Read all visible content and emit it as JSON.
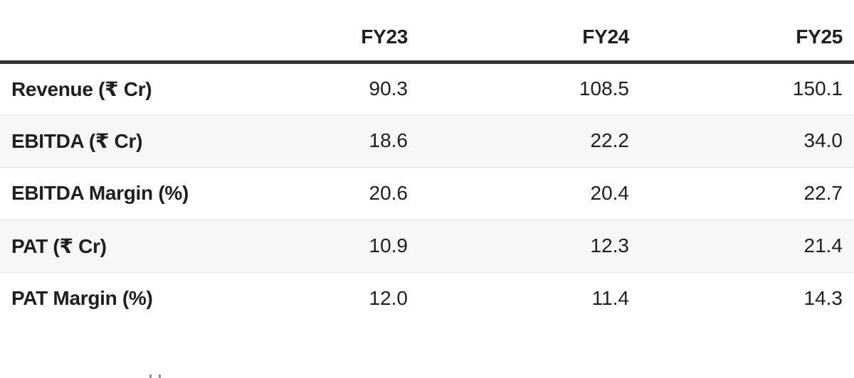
{
  "table": {
    "columns": [
      "",
      "FY23",
      "FY24",
      "FY25"
    ],
    "rows": [
      {
        "label": "Revenue (₹ Cr)",
        "values": [
          "90.3",
          "108.5",
          "150.1"
        ]
      },
      {
        "label": "EBITDA (₹ Cr)",
        "values": [
          "18.6",
          "22.2",
          "34.0"
        ]
      },
      {
        "label": "EBITDA Margin (%)",
        "values": [
          "20.6",
          "20.4",
          "22.7"
        ]
      },
      {
        "label": "PAT (₹ Cr)",
        "values": [
          "10.9",
          "12.3",
          "21.4"
        ]
      },
      {
        "label": "PAT Margin (%)",
        "values": [
          "12.0",
          "11.4",
          "14.3"
        ]
      }
    ]
  },
  "chart_data": {
    "type": "table",
    "title": "",
    "categories": [
      "FY23",
      "FY24",
      "FY25"
    ],
    "series": [
      {
        "name": "Revenue (₹ Cr)",
        "values": [
          90.3,
          108.5,
          150.1
        ]
      },
      {
        "name": "EBITDA (₹ Cr)",
        "values": [
          18.6,
          22.2,
          34.0
        ]
      },
      {
        "name": "EBITDA Margin (%)",
        "values": [
          20.6,
          20.4,
          22.7
        ]
      },
      {
        "name": "PAT (₹ Cr)",
        "values": [
          10.9,
          12.3,
          21.4
        ]
      },
      {
        "name": "PAT Margin (%)",
        "values": [
          12.0,
          11.4,
          14.3
        ]
      }
    ],
    "layout": {
      "zebra_stripe": true,
      "header_rule": true
    }
  },
  "colors": {
    "header_rule": "#333333",
    "row_separator": "#e7e7e7",
    "zebra_row_bg": "#f7f7f7",
    "text": "#1f1f1f",
    "background": "#ffffff"
  }
}
